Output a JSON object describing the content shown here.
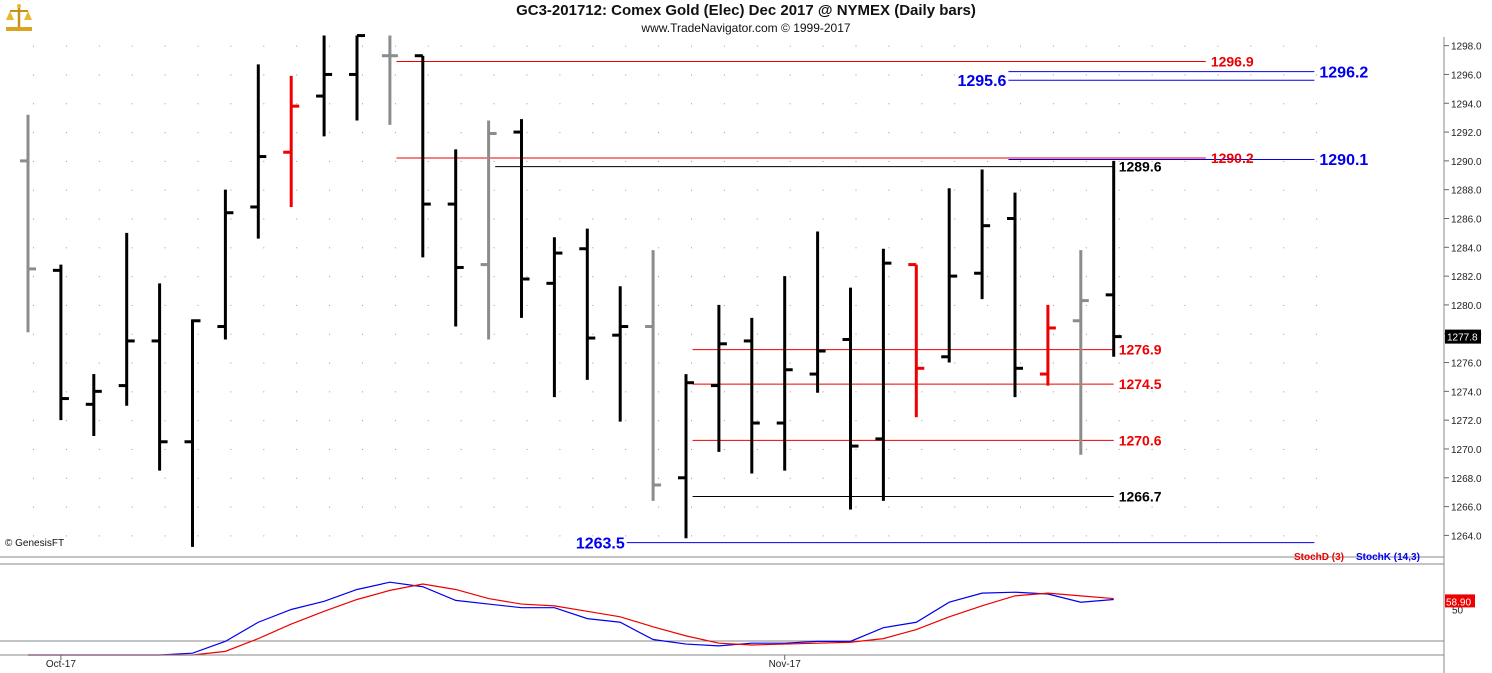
{
  "header": {
    "title": "GC3-201712:  Comex Gold (Elec) Dec 2017 @ NYMEX  (Daily bars)",
    "subtitle": "www.TradeNavigator.com © 1999-2017"
  },
  "chart_data": [
    {
      "type": "ohlc",
      "ylim": [
        1262.5,
        1298.6
      ],
      "yticks": [
        1264,
        1266,
        1268,
        1270,
        1272,
        1274,
        1276,
        1278,
        1280,
        1282,
        1284,
        1286,
        1288,
        1290,
        1292,
        1294,
        1296,
        1298
      ],
      "ytick_labels": [
        "1264.0",
        "1266.0",
        "1268.0",
        "1270.0",
        "1272.0",
        "1274.0",
        "1276.0",
        "1278.0",
        "1280.0",
        "1282.0",
        "1284.0",
        "1286.0",
        "1288.0",
        "1290.0",
        "1292.0",
        "1294.0",
        "1296.0",
        "1298.0"
      ],
      "x_labels": [
        {
          "index": 1,
          "text": "Oct-17"
        },
        {
          "index": 23,
          "text": "Nov-17"
        }
      ],
      "current_price": "1277.8",
      "watermark": "© GenesisFT",
      "colors": {
        "black": "#000000",
        "gray": "#8c8c8c",
        "red": "#ee0000",
        "blue": "#0000ee"
      },
      "bars": [
        {
          "o": 1290.0,
          "h": 1293.2,
          "l": 1278.1,
          "c": 1282.5,
          "color": "gray"
        },
        {
          "o": 1282.4,
          "h": 1282.8,
          "l": 1272.0,
          "c": 1273.5,
          "color": "black"
        },
        {
          "o": 1273.1,
          "h": 1275.2,
          "l": 1270.9,
          "c": 1274.0,
          "color": "black"
        },
        {
          "o": 1274.4,
          "h": 1285.0,
          "l": 1273.0,
          "c": 1277.5,
          "color": "black"
        },
        {
          "o": 1277.5,
          "h": 1281.5,
          "l": 1268.5,
          "c": 1270.5,
          "color": "black"
        },
        {
          "o": 1270.5,
          "h": 1279.0,
          "l": 1263.2,
          "c": 1278.9,
          "color": "black"
        },
        {
          "o": 1278.5,
          "h": 1288.0,
          "l": 1277.6,
          "c": 1286.4,
          "color": "black"
        },
        {
          "o": 1286.8,
          "h": 1296.7,
          "l": 1284.6,
          "c": 1290.3,
          "color": "black"
        },
        {
          "o": 1290.6,
          "h": 1295.9,
          "l": 1286.8,
          "c": 1293.8,
          "color": "red"
        },
        {
          "o": 1294.5,
          "h": 1298.7,
          "l": 1291.7,
          "c": 1296.0,
          "color": "black"
        },
        {
          "o": 1296.0,
          "h": 1298.7,
          "l": 1292.8,
          "c": 1298.7,
          "color": "black"
        },
        {
          "o": 1297.3,
          "h": 1298.7,
          "l": 1292.5,
          "c": 1297.3,
          "color": "gray"
        },
        {
          "o": 1297.3,
          "h": 1297.3,
          "l": 1283.3,
          "c": 1287.0,
          "color": "black"
        },
        {
          "o": 1287.0,
          "h": 1290.8,
          "l": 1278.5,
          "c": 1282.6,
          "color": "black"
        },
        {
          "o": 1282.8,
          "h": 1292.8,
          "l": 1277.6,
          "c": 1291.9,
          "color": "gray"
        },
        {
          "o": 1292.0,
          "h": 1292.9,
          "l": 1279.1,
          "c": 1281.8,
          "color": "black"
        },
        {
          "o": 1281.5,
          "h": 1284.7,
          "l": 1273.6,
          "c": 1283.6,
          "color": "black"
        },
        {
          "o": 1283.9,
          "h": 1285.3,
          "l": 1274.8,
          "c": 1277.7,
          "color": "black"
        },
        {
          "o": 1277.9,
          "h": 1281.3,
          "l": 1271.9,
          "c": 1278.5,
          "color": "black"
        },
        {
          "o": 1278.5,
          "h": 1283.8,
          "l": 1266.4,
          "c": 1267.5,
          "color": "gray"
        },
        {
          "o": 1268.0,
          "h": 1275.2,
          "l": 1263.8,
          "c": 1274.6,
          "color": "black"
        },
        {
          "o": 1274.4,
          "h": 1280.0,
          "l": 1269.8,
          "c": 1277.3,
          "color": "black"
        },
        {
          "o": 1277.5,
          "h": 1279.1,
          "l": 1268.3,
          "c": 1271.8,
          "color": "black"
        },
        {
          "o": 1271.8,
          "h": 1282.0,
          "l": 1268.5,
          "c": 1275.5,
          "color": "black"
        },
        {
          "o": 1275.2,
          "h": 1285.1,
          "l": 1273.9,
          "c": 1276.8,
          "color": "black"
        },
        {
          "o": 1277.6,
          "h": 1281.2,
          "l": 1265.8,
          "c": 1270.2,
          "color": "black"
        },
        {
          "o": 1270.7,
          "h": 1283.9,
          "l": 1266.4,
          "c": 1282.9,
          "color": "black"
        },
        {
          "o": 1282.8,
          "h": 1282.8,
          "l": 1272.2,
          "c": 1275.6,
          "color": "red"
        },
        {
          "o": 1276.4,
          "h": 1288.1,
          "l": 1276.0,
          "c": 1282.0,
          "color": "black"
        },
        {
          "o": 1282.2,
          "h": 1289.4,
          "l": 1280.4,
          "c": 1285.5,
          "color": "black"
        },
        {
          "o": 1286.0,
          "h": 1287.8,
          "l": 1273.6,
          "c": 1275.6,
          "color": "black"
        },
        {
          "o": 1275.2,
          "h": 1280.0,
          "l": 1274.4,
          "c": 1278.4,
          "color": "red"
        },
        {
          "o": 1278.9,
          "h": 1283.8,
          "l": 1269.6,
          "c": 1280.3,
          "color": "gray"
        },
        {
          "o": 1280.7,
          "h": 1290.0,
          "l": 1276.4,
          "c": 1277.8,
          "color": "black"
        }
      ],
      "levels": [
        {
          "value": 1296.9,
          "label": "1296.9",
          "color": "red",
          "start": 11.2,
          "end": 35.8,
          "label_side": "right"
        },
        {
          "value": 1296.2,
          "label": "1296.2",
          "color": "blue",
          "start": 29.8,
          "end": 39.1,
          "label_side": "right"
        },
        {
          "value": 1295.6,
          "label": "1295.6",
          "color": "blue",
          "start": 29.8,
          "end": 39.1,
          "label_side": "left"
        },
        {
          "value": 1290.2,
          "label": "1290.2",
          "color": "red",
          "start": 11.2,
          "end": 35.8,
          "label_side": "right"
        },
        {
          "value": 1290.1,
          "label": "1290.1",
          "color": "blue",
          "start": 29.8,
          "end": 39.1,
          "label_side": "right"
        },
        {
          "value": 1289.6,
          "label": "1289.6",
          "color": "black",
          "start": 14.2,
          "end": 33.0,
          "label_side": "right"
        },
        {
          "value": 1276.9,
          "label": "1276.9",
          "color": "red",
          "start": 20.2,
          "end": 33.0,
          "label_side": "right"
        },
        {
          "value": 1274.5,
          "label": "1274.5",
          "color": "red",
          "start": 20.2,
          "end": 33.0,
          "label_side": "right"
        },
        {
          "value": 1270.6,
          "label": "1270.6",
          "color": "red",
          "start": 20.2,
          "end": 33.0,
          "label_side": "right"
        },
        {
          "value": 1266.7,
          "label": "1266.7",
          "color": "black",
          "start": 20.2,
          "end": 33.0,
          "label_side": "right"
        },
        {
          "value": 1263.5,
          "label": "1263.5",
          "color": "blue",
          "start": 18.2,
          "end": 39.1,
          "label_side": "left"
        }
      ]
    },
    {
      "type": "line",
      "ylim": [
        0,
        100
      ],
      "yticks": [
        50
      ],
      "ytick_labels": [
        "50"
      ],
      "current_value": "58.90",
      "series": [
        {
          "name": "StochK (14,3)",
          "color": "#0000ee",
          "values": [
            0,
            0,
            0,
            0,
            0,
            2,
            15,
            36,
            50,
            59,
            72,
            80,
            75,
            60,
            56,
            52,
            52,
            40,
            36,
            17,
            12,
            10,
            13,
            13,
            15,
            15,
            30,
            36,
            58,
            68,
            69,
            67,
            58,
            61
          ]
        },
        {
          "name": "StochD (3)",
          "color": "#ee0000",
          "values": [
            0,
            0,
            0,
            0,
            0,
            0,
            4,
            18,
            34,
            48,
            61,
            71,
            78,
            72,
            62,
            56,
            54,
            48,
            42,
            31,
            21,
            13,
            11,
            12,
            13,
            14,
            18,
            28,
            42,
            54,
            65,
            68,
            65,
            62
          ]
        }
      ]
    }
  ]
}
